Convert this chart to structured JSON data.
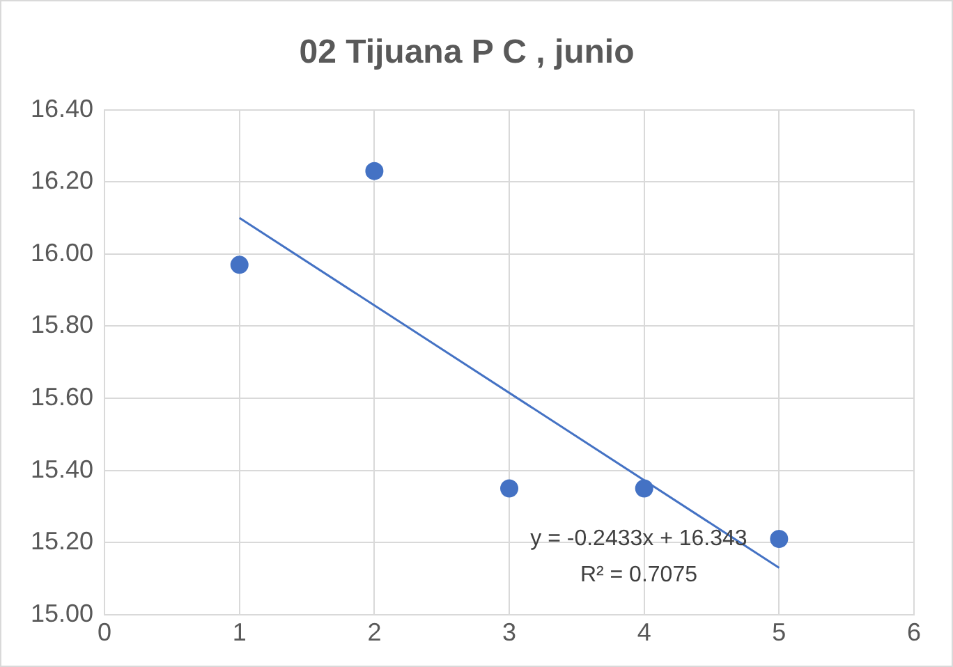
{
  "chart_data": {
    "type": "scatter",
    "title": "02 Tijuana P C , junio",
    "series": [
      {
        "type": "scatter",
        "color": "#4472c4",
        "x": [
          1,
          2,
          3,
          4,
          5
        ],
        "values": [
          15.97,
          16.23,
          15.35,
          15.35,
          15.21
        ],
        "marker": "circle"
      },
      {
        "type": "line",
        "color": "#4472c4",
        "x": [
          1,
          5
        ],
        "values": [
          16.1,
          15.13
        ],
        "marker": "none",
        "line_style": "solid"
      }
    ],
    "xlim": [
      0,
      6
    ],
    "xticks": [
      0,
      1,
      2,
      3,
      4,
      5,
      6
    ],
    "ylim": [
      15,
      16.4
    ],
    "yticks": [
      {
        "value": 15,
        "label": "15.00"
      },
      {
        "value": 15.2,
        "label": "15.20"
      },
      {
        "value": 15.4,
        "label": "15.40"
      },
      {
        "value": 15.6,
        "label": "15.60"
      },
      {
        "value": 15.8,
        "label": "15.80"
      },
      {
        "value": 16,
        "label": "16.00"
      },
      {
        "value": 16.2,
        "label": "16.20"
      },
      {
        "value": 16.4,
        "label": "16.40"
      }
    ],
    "grid": true,
    "legend": false,
    "annotations": [
      "y = -0.2433x + 16.343",
      "R² = 0.7075"
    ]
  }
}
